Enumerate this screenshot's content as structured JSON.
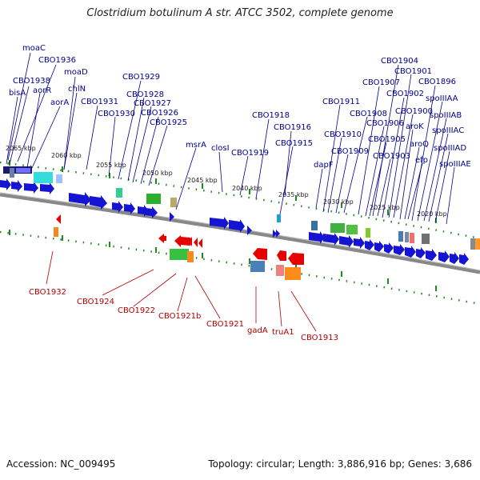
{
  "title": "Clostridium botulinum A str. ATCC 3502, complete genome",
  "footer": {
    "accession": "Accession: NC_009495",
    "topology": "Topology: circular; Length: 3,886,916 bp; Genes: 3,686"
  },
  "colors": {
    "forward_gene": "#1414d2",
    "reverse_gene": "#e60000",
    "label_forward": "#00008b",
    "label_reverse": "#b00000",
    "backbone": "#888888",
    "tick": "#1f8a1f"
  },
  "kbp_marks": [
    "2065 kbp",
    "2060 kbp",
    "2055 kbp",
    "2050 kbp",
    "2045 kbp",
    "2040 kbp",
    "2035 kbp",
    "2030 kbp",
    "2025 kbp",
    "2020 kbp"
  ],
  "top_labels": [
    "moaC",
    "CBO1936",
    "CBO1938",
    "moaD",
    "aorR",
    "bisA",
    "aorA",
    "chlN",
    "CBO1931",
    "CBO1930",
    "CBO1929",
    "CBO1928",
    "CBO1927",
    "CBO1926",
    "CBO1925",
    "msrA",
    "closI",
    "CBO1919",
    "CBO1918",
    "CBO1916",
    "CBO1915",
    "dapF",
    "CBO1911",
    "CBO1910",
    "CBO1909",
    "CBO1908",
    "CBO1907",
    "CBO1906",
    "CBO1905",
    "CBO1904",
    "CBO1903",
    "CBO1902",
    "CBO1901",
    "CBO1900",
    "aroK",
    "aroQ",
    "efp",
    "CBO1896",
    "spoIIIAA",
    "spoIIIAB",
    "spoIIIAC",
    "spoIIIAD",
    "spoIIIAE"
  ],
  "bottom_labels": [
    "CBO1932",
    "CBO1924",
    "CBO1922",
    "CBO1921b",
    "CBO1921",
    "gadA",
    "truA1",
    "CBO1913"
  ]
}
